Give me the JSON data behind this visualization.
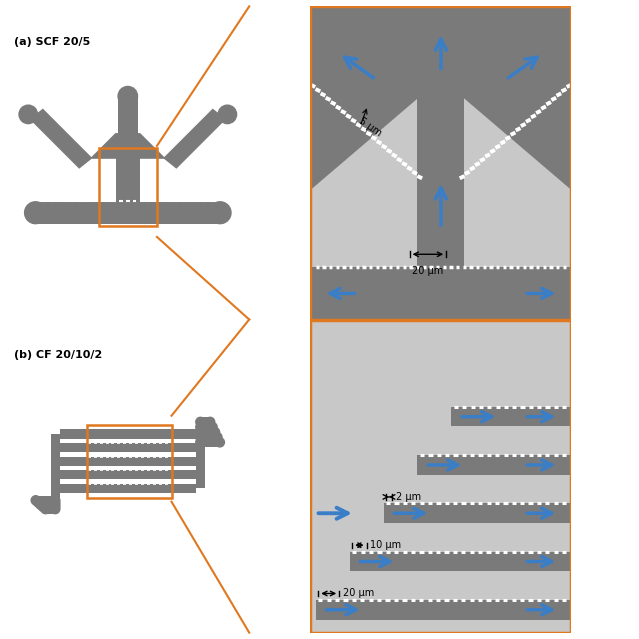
{
  "bg_color": "#ffffff",
  "chip_color": "#7a7a7a",
  "bg_panel": "#c8c8c8",
  "arrow_color": "#3a7ec8",
  "zoom_box_color": "#e07820",
  "title_a": "(a) SCF 20/5",
  "title_b": "(b) CF 20/10/2",
  "label_5um": "5 μm",
  "label_20um_a": "20 μm",
  "label_20um_b": "20 μm",
  "label_10um": "10 μm",
  "label_2um": "2 μm",
  "layout": {
    "tl": [
      0.01,
      0.5,
      0.38,
      0.49
    ],
    "tr": [
      0.39,
      0.5,
      0.6,
      0.49
    ],
    "bl": [
      0.01,
      0.01,
      0.38,
      0.49
    ],
    "br": [
      0.39,
      0.01,
      0.6,
      0.49
    ]
  }
}
